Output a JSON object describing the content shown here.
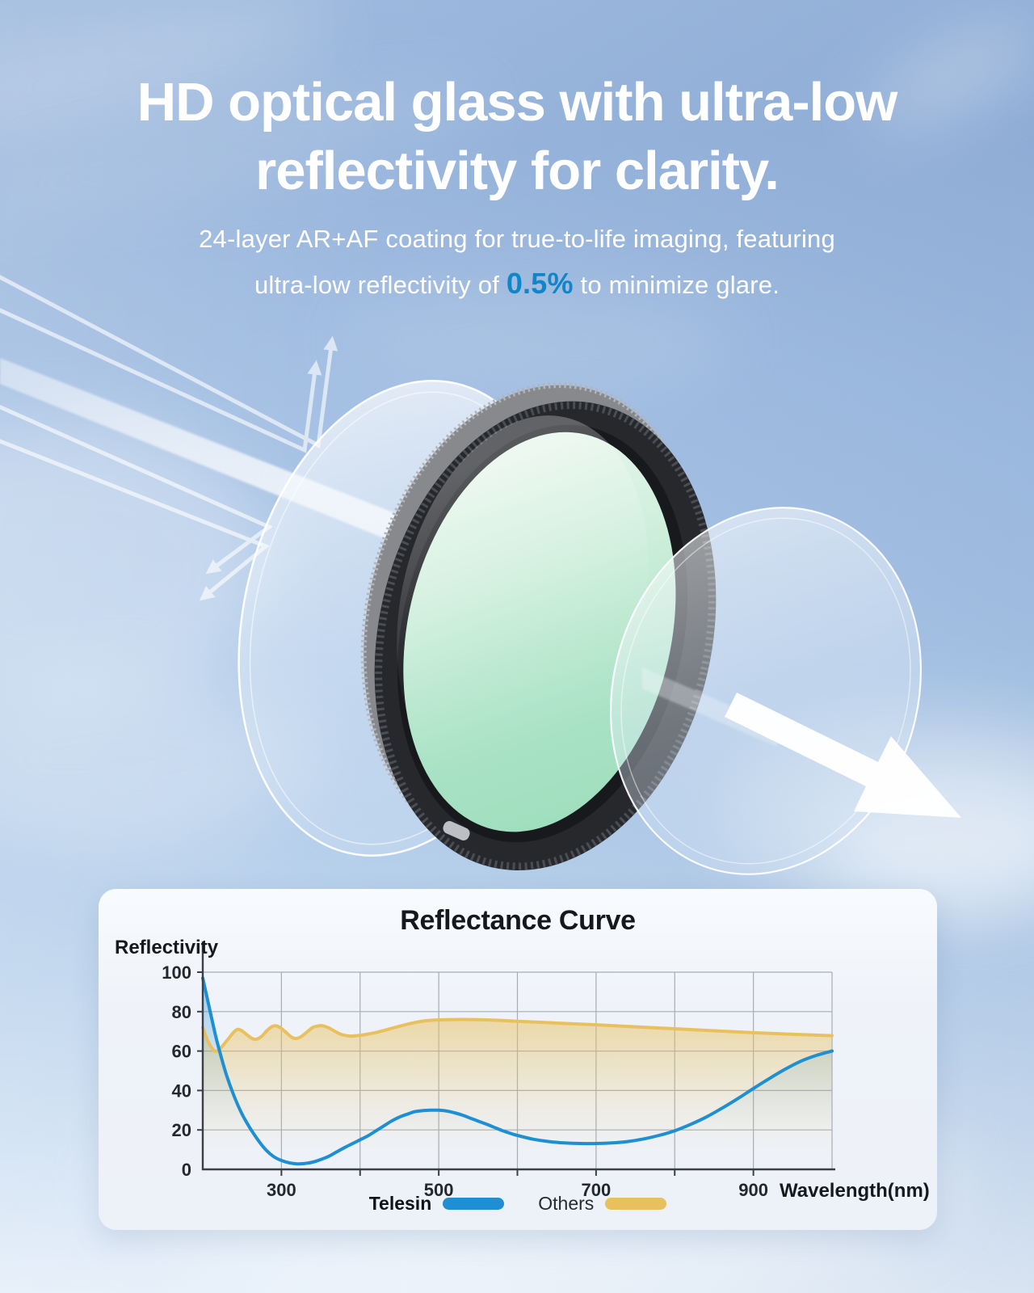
{
  "header": {
    "title_line1": "HD optical glass with ultra-low",
    "title_line2": "reflectivity for clarity.",
    "subtitle_line1": "24-layer AR+AF coating for true-to-life imaging, featuring",
    "subtitle_line2_prefix": "ultra-low reflectivity of ",
    "subtitle_highlight": "0.5%",
    "subtitle_line2_suffix": " to minimize glare.",
    "text_color": "#ffffff",
    "highlight_color": "#0f85ca"
  },
  "illustration": {
    "filter_ring_color": "#26282c",
    "filter_glass_color": "#a5e0c2",
    "glass_disc_tint": "#dcebf8",
    "light_arrow_color": "#ffffff",
    "elements": [
      "incident-light-beam",
      "reflected-light-arrows",
      "front-glass-disc",
      "filter-ring",
      "coated-filter-glass",
      "rear-glass-disc",
      "transmitted-light-arrow"
    ]
  },
  "chart_data": {
    "type": "line",
    "title": "Reflectance Curve",
    "xlabel": "Wavelength(nm)",
    "ylabel": "Reflectivity",
    "xlim": [
      200,
      1000
    ],
    "ylim": [
      0,
      100
    ],
    "x_ticks": [
      300,
      500,
      700,
      900
    ],
    "y_ticks": [
      0,
      20,
      40,
      60,
      80,
      100
    ],
    "x_grid_step": 100,
    "y_grid_step": 20,
    "grid": true,
    "legend_position": "bottom",
    "series": [
      {
        "name": "Telesin",
        "color": "#1e8fd2",
        "points": [
          [
            200,
            97
          ],
          [
            205,
            88
          ],
          [
            210,
            79
          ],
          [
            215,
            70
          ],
          [
            220,
            62
          ],
          [
            230,
            48
          ],
          [
            240,
            37
          ],
          [
            250,
            28
          ],
          [
            260,
            21
          ],
          [
            270,
            15
          ],
          [
            280,
            10
          ],
          [
            290,
            6.5
          ],
          [
            300,
            4.5
          ],
          [
            310,
            3.3
          ],
          [
            320,
            2.8
          ],
          [
            330,
            3
          ],
          [
            340,
            3.7
          ],
          [
            350,
            5
          ],
          [
            360,
            6.6
          ],
          [
            370,
            8.8
          ],
          [
            380,
            11
          ],
          [
            390,
            13
          ],
          [
            400,
            15
          ],
          [
            410,
            17
          ],
          [
            420,
            19.5
          ],
          [
            430,
            22
          ],
          [
            440,
            24.5
          ],
          [
            450,
            26.5
          ],
          [
            460,
            28
          ],
          [
            470,
            29.3
          ],
          [
            480,
            29.8
          ],
          [
            490,
            30
          ],
          [
            500,
            30
          ],
          [
            510,
            29.6
          ],
          [
            520,
            28.7
          ],
          [
            530,
            27.5
          ],
          [
            540,
            26
          ],
          [
            550,
            24.5
          ],
          [
            560,
            23
          ],
          [
            570,
            21.4
          ],
          [
            580,
            19.8
          ],
          [
            590,
            18.4
          ],
          [
            600,
            17.2
          ],
          [
            620,
            15.3
          ],
          [
            640,
            14.1
          ],
          [
            660,
            13.4
          ],
          [
            680,
            13.1
          ],
          [
            700,
            13.1
          ],
          [
            720,
            13.4
          ],
          [
            740,
            14.1
          ],
          [
            760,
            15.4
          ],
          [
            780,
            17.2
          ],
          [
            800,
            19.6
          ],
          [
            820,
            22.8
          ],
          [
            840,
            26.5
          ],
          [
            860,
            31
          ],
          [
            880,
            35.8
          ],
          [
            900,
            41
          ],
          [
            920,
            46
          ],
          [
            940,
            50.7
          ],
          [
            960,
            54.8
          ],
          [
            980,
            57.8
          ],
          [
            1000,
            60
          ]
        ]
      },
      {
        "name": "Others",
        "color": "#e9c05e",
        "points": [
          [
            200,
            72
          ],
          [
            205,
            66.5
          ],
          [
            210,
            62.5
          ],
          [
            215,
            60
          ],
          [
            220,
            60.5
          ],
          [
            225,
            62.5
          ],
          [
            232,
            66
          ],
          [
            240,
            69.8
          ],
          [
            245,
            71
          ],
          [
            250,
            70.2
          ],
          [
            257,
            68
          ],
          [
            263,
            66.3
          ],
          [
            268,
            66
          ],
          [
            275,
            67.5
          ],
          [
            282,
            70.5
          ],
          [
            288,
            72.4
          ],
          [
            293,
            72.8
          ],
          [
            298,
            72
          ],
          [
            305,
            69.8
          ],
          [
            312,
            67.3
          ],
          [
            318,
            66.4
          ],
          [
            325,
            67.3
          ],
          [
            333,
            69.8
          ],
          [
            340,
            72
          ],
          [
            348,
            72.8
          ],
          [
            353,
            72.8
          ],
          [
            360,
            71.8
          ],
          [
            368,
            70
          ],
          [
            375,
            68.6
          ],
          [
            383,
            67.8
          ],
          [
            390,
            67.6
          ],
          [
            400,
            68
          ],
          [
            410,
            68.6
          ],
          [
            420,
            69.4
          ],
          [
            430,
            70.4
          ],
          [
            440,
            71.5
          ],
          [
            450,
            72.6
          ],
          [
            460,
            73.6
          ],
          [
            470,
            74.5
          ],
          [
            480,
            75.2
          ],
          [
            490,
            75.6
          ],
          [
            500,
            75.8
          ],
          [
            520,
            76
          ],
          [
            540,
            76
          ],
          [
            560,
            75.8
          ],
          [
            580,
            75.5
          ],
          [
            600,
            75.1
          ],
          [
            650,
            74.2
          ],
          [
            700,
            73.3
          ],
          [
            750,
            72.3
          ],
          [
            800,
            71.3
          ],
          [
            850,
            70.3
          ],
          [
            900,
            69.3
          ],
          [
            950,
            68.5
          ],
          [
            1000,
            67.8
          ]
        ]
      }
    ]
  }
}
